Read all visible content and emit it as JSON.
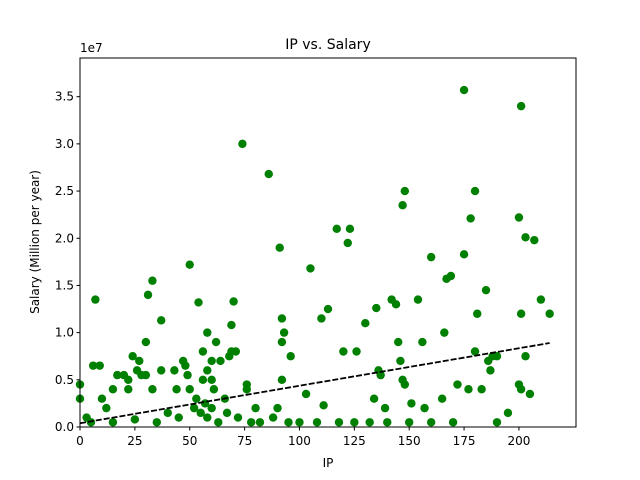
{
  "chart_data": {
    "type": "scatter",
    "title": "IP vs. Salary",
    "x_label": "IP",
    "y_label": "Salary (Million per year)",
    "y_offset_label": "1e7",
    "color": "#008000",
    "x": [
      0,
      0,
      7,
      6,
      9,
      3,
      5,
      10,
      12,
      15,
      17,
      20,
      22,
      22,
      24,
      26,
      27,
      28,
      30,
      30,
      31,
      33,
      33,
      37,
      37,
      40,
      43,
      44,
      47,
      48,
      50,
      49,
      50,
      54,
      56,
      56,
      58,
      58,
      60,
      60,
      61,
      62,
      64,
      66,
      68,
      69,
      69,
      70,
      71,
      74,
      76,
      76,
      80,
      86,
      88,
      90,
      91,
      92,
      92,
      92,
      93,
      96,
      100,
      103,
      105,
      110,
      111,
      113,
      117,
      120,
      122,
      123,
      126,
      130,
      134,
      135,
      136,
      137,
      139,
      142,
      144,
      145,
      146,
      147,
      148,
      147,
      148,
      151,
      154,
      156,
      157,
      160,
      165,
      166,
      167,
      169,
      172,
      175,
      175,
      177,
      178,
      180,
      180,
      181,
      183,
      185,
      186,
      187,
      188,
      190,
      195,
      200,
      201,
      201,
      200,
      201,
      203,
      203,
      205,
      207,
      210,
      214,
      15,
      25,
      35,
      45,
      52,
      55,
      58,
      63,
      67,
      72,
      78,
      82,
      95,
      108,
      118,
      125,
      132,
      140,
      150,
      160,
      170,
      190,
      60,
      53,
      57
    ],
    "values": [
      0.45,
      0.3,
      1.35,
      0.65,
      0.65,
      0.1,
      0.05,
      0.3,
      0.2,
      0.4,
      0.55,
      0.55,
      0.4,
      0.5,
      0.75,
      0.6,
      0.7,
      0.55,
      0.9,
      0.55,
      1.4,
      1.55,
      0.4,
      1.13,
      0.6,
      0.15,
      0.6,
      0.4,
      0.7,
      0.65,
      1.72,
      0.55,
      0.4,
      1.32,
      0.8,
      0.5,
      1.0,
      0.6,
      0.7,
      0.5,
      0.4,
      0.9,
      0.7,
      0.3,
      0.75,
      0.8,
      1.08,
      1.33,
      0.8,
      3.0,
      0.45,
      0.4,
      0.2,
      2.68,
      0.1,
      0.2,
      1.9,
      1.15,
      0.9,
      0.5,
      1.0,
      0.75,
      0.05,
      0.35,
      1.68,
      1.15,
      0.23,
      1.25,
      2.1,
      0.8,
      1.95,
      2.1,
      0.8,
      1.1,
      0.3,
      1.26,
      0.6,
      0.55,
      0.2,
      1.35,
      1.3,
      0.9,
      0.7,
      2.35,
      2.5,
      0.5,
      0.45,
      0.25,
      1.35,
      0.9,
      0.2,
      1.8,
      0.3,
      1.0,
      1.57,
      1.6,
      0.45,
      3.57,
      1.83,
      0.4,
      2.21,
      2.5,
      0.8,
      1.2,
      0.4,
      1.45,
      0.7,
      0.6,
      0.75,
      0.75,
      0.15,
      2.22,
      3.4,
      1.2,
      0.45,
      0.4,
      2.01,
      0.75,
      0.35,
      1.98,
      1.35,
      1.2,
      0.05,
      0.08,
      0.05,
      0.1,
      0.2,
      0.15,
      0.1,
      0.05,
      0.15,
      0.1,
      0.05,
      0.05,
      0.05,
      0.05,
      0.05,
      0.05,
      0.05,
      0.05,
      0.05,
      0.05,
      0.05,
      0.05,
      0.2,
      0.3,
      0.25
    ],
    "trendline": {
      "color": "#000000",
      "x": [
        0,
        214
      ],
      "y": [
        0.04,
        0.89
      ]
    },
    "xlim": [
      0,
      226
    ],
    "ylim": [
      0,
      3.91
    ],
    "xticks": [
      0,
      25,
      50,
      75,
      100,
      125,
      150,
      175,
      200
    ],
    "yticks": [
      {
        "value": 0,
        "label": "0.0"
      },
      0.5,
      {
        "value": 1,
        "label": "1.0"
      },
      1.5,
      {
        "value": 2,
        "label": "2.0"
      },
      2.5,
      {
        "value": 3,
        "label": "3.0"
      },
      3.5
    ]
  }
}
